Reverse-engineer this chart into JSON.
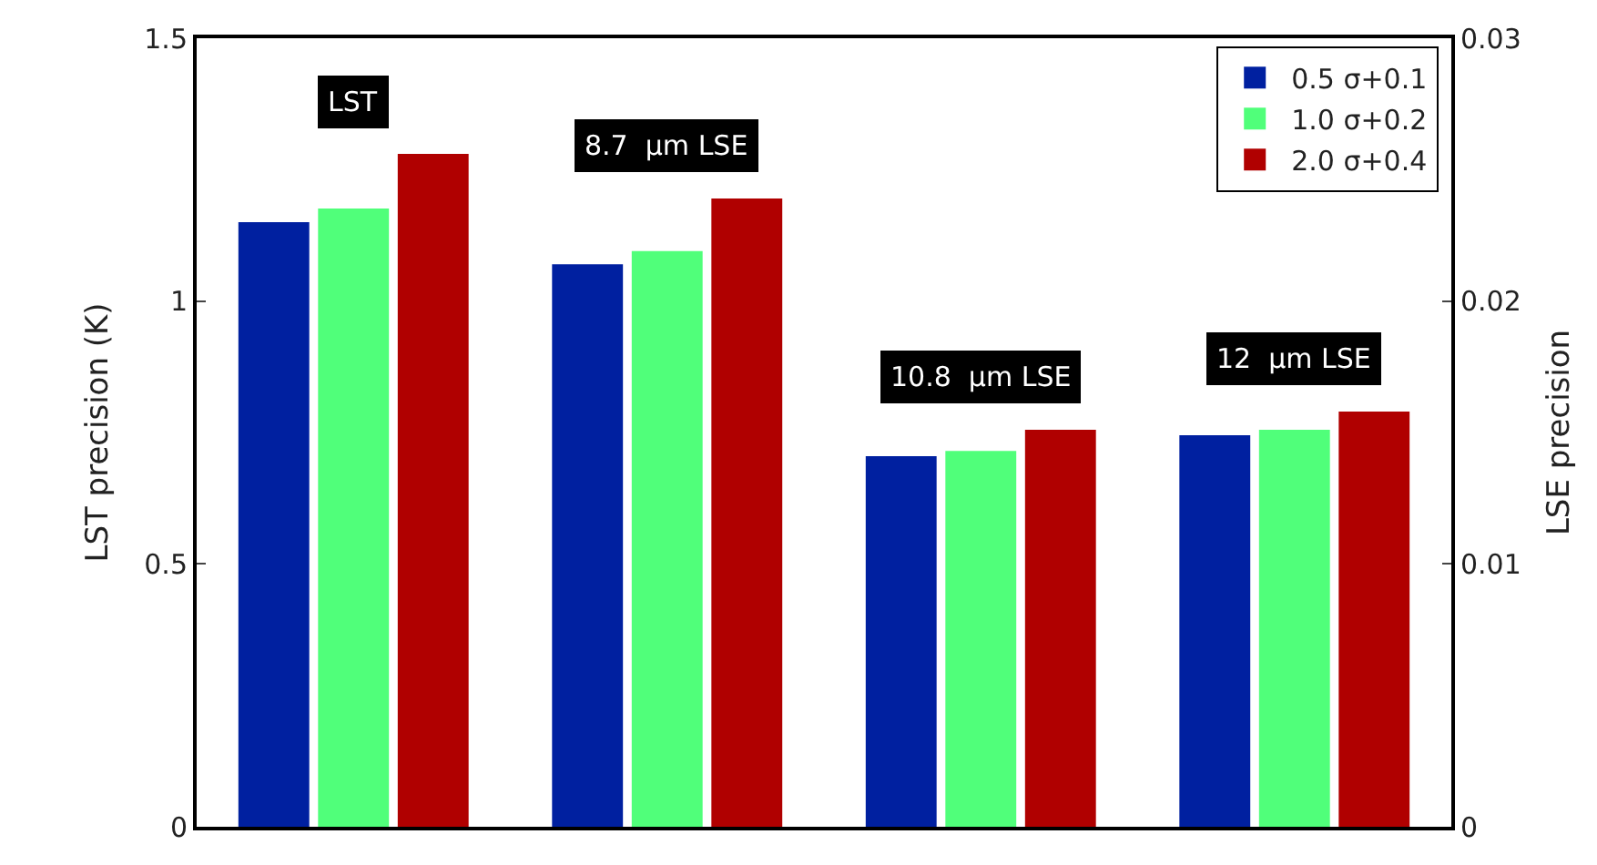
{
  "chart_data": {
    "type": "bar",
    "categories": [
      null,
      null,
      null,
      null
    ],
    "ylabel": "LST precision (K)",
    "y2label": "LSE precision",
    "ylim": [
      0,
      1.5
    ],
    "yticks": [
      0,
      0.5,
      1,
      1.5
    ],
    "y2lim": [
      0,
      0.03
    ],
    "y2ticks": [
      0,
      0.01,
      0.02,
      0.03
    ],
    "annotations": [
      "LST",
      "8.7  μm LSE",
      "10.8  μm LSE",
      "12  μm LSE"
    ],
    "legend": "top right",
    "series": [
      {
        "name": "0.5 σ+0.1",
        "color": "#0020a0",
        "values": [
          1.15,
          null,
          null,
          null
        ]
      },
      {
        "name": "1.0 σ+0.2",
        "color": "#50ff7a",
        "values": [
          1.176,
          null,
          null,
          null
        ]
      },
      {
        "name": "2.0 σ+0.4",
        "color": "#b00000",
        "values": [
          1.28,
          null,
          null,
          null
        ]
      },
      {
        "color": "#0020a0",
        "axis": "y2",
        "values": [
          null,
          0.0214,
          0.0141,
          0.0149
        ]
      },
      {
        "color": "#50ff7a",
        "axis": "y2",
        "values": [
          null,
          0.0219,
          0.0143,
          0.0151
        ]
      },
      {
        "color": "#b00000",
        "axis": "y2",
        "values": [
          null,
          0.0239,
          0.0151,
          0.0158
        ]
      }
    ]
  }
}
